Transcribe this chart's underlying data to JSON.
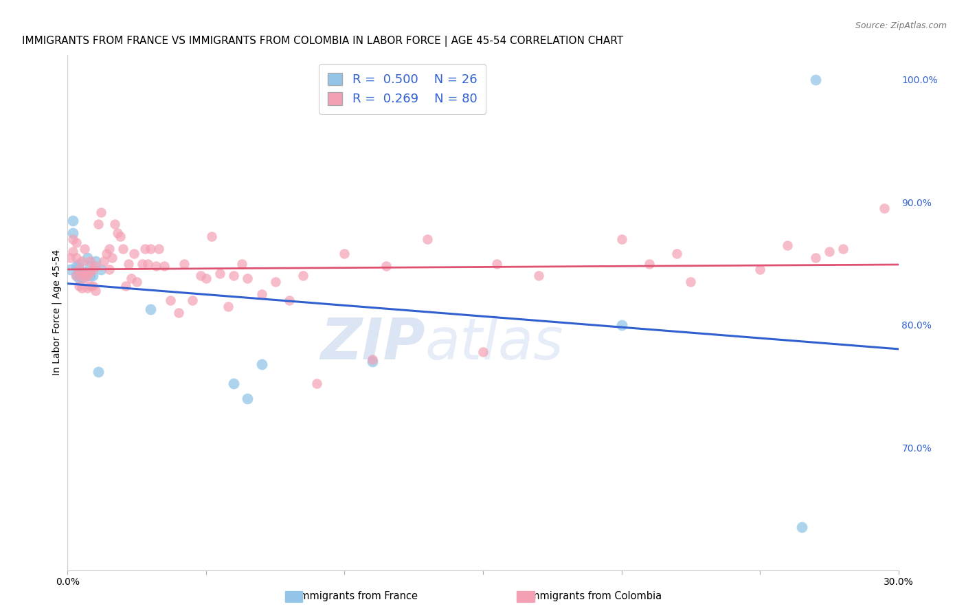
{
  "title": "IMMIGRANTS FROM FRANCE VS IMMIGRANTS FROM COLOMBIA IN LABOR FORCE | AGE 45-54 CORRELATION CHART",
  "source": "Source: ZipAtlas.com",
  "ylabel": "In Labor Force | Age 45-54",
  "xlim": [
    0.0,
    0.3
  ],
  "ylim": [
    0.6,
    1.02
  ],
  "xticks": [
    0.0,
    0.05,
    0.1,
    0.15,
    0.2,
    0.25,
    0.3
  ],
  "xticklabels": [
    "0.0%",
    "",
    "",
    "",
    "",
    "",
    "30.0%"
  ],
  "yticks": [
    0.7,
    0.8,
    0.9,
    1.0
  ],
  "yticklabels": [
    "70.0%",
    "80.0%",
    "90.0%",
    "100.0%"
  ],
  "legend_R_france": "0.500",
  "legend_N_france": "26",
  "legend_R_colombia": "0.269",
  "legend_N_colombia": "80",
  "france_color": "#92C5E8",
  "colombia_color": "#F4A0B4",
  "france_line_color": "#3060D0",
  "colombia_line_color": "#E05070",
  "watermark_zip": "ZIP",
  "watermark_atlas": "atlas",
  "bg_color": "#FFFFFF",
  "grid_color": "#CCCCCC",
  "title_fontsize": 11,
  "axis_label_fontsize": 10,
  "tick_fontsize": 10,
  "source_fontsize": 9,
  "france_x": [
    0.001,
    0.002,
    0.002,
    0.003,
    0.003,
    0.004,
    0.004,
    0.004,
    0.005,
    0.005,
    0.006,
    0.007,
    0.008,
    0.008,
    0.009,
    0.01,
    0.011,
    0.012,
    0.03,
    0.06,
    0.065,
    0.07,
    0.11,
    0.2,
    0.265,
    0.27
  ],
  "france_y": [
    0.845,
    0.875,
    0.885,
    0.84,
    0.848,
    0.838,
    0.842,
    0.85,
    0.838,
    0.843,
    0.843,
    0.855,
    0.84,
    0.848,
    0.84,
    0.852,
    0.762,
    0.845,
    0.813,
    0.752,
    0.74,
    0.768,
    0.77,
    0.8,
    0.635,
    1.0
  ],
  "colombia_x": [
    0.001,
    0.002,
    0.002,
    0.003,
    0.003,
    0.003,
    0.004,
    0.004,
    0.005,
    0.005,
    0.005,
    0.006,
    0.006,
    0.006,
    0.007,
    0.007,
    0.008,
    0.008,
    0.008,
    0.009,
    0.009,
    0.01,
    0.01,
    0.011,
    0.012,
    0.013,
    0.014,
    0.015,
    0.015,
    0.016,
    0.017,
    0.018,
    0.019,
    0.02,
    0.021,
    0.022,
    0.023,
    0.024,
    0.025,
    0.027,
    0.028,
    0.029,
    0.03,
    0.032,
    0.033,
    0.035,
    0.037,
    0.04,
    0.042,
    0.045,
    0.048,
    0.05,
    0.052,
    0.055,
    0.058,
    0.06,
    0.063,
    0.065,
    0.07,
    0.075,
    0.08,
    0.085,
    0.09,
    0.1,
    0.11,
    0.115,
    0.13,
    0.15,
    0.155,
    0.17,
    0.2,
    0.21,
    0.22,
    0.225,
    0.25,
    0.26,
    0.27,
    0.275,
    0.28,
    0.295
  ],
  "colombia_y": [
    0.855,
    0.86,
    0.87,
    0.84,
    0.855,
    0.867,
    0.832,
    0.845,
    0.83,
    0.84,
    0.852,
    0.838,
    0.843,
    0.862,
    0.83,
    0.84,
    0.832,
    0.843,
    0.852,
    0.832,
    0.845,
    0.828,
    0.848,
    0.882,
    0.892,
    0.852,
    0.858,
    0.845,
    0.862,
    0.855,
    0.882,
    0.875,
    0.872,
    0.862,
    0.832,
    0.85,
    0.838,
    0.858,
    0.835,
    0.85,
    0.862,
    0.85,
    0.862,
    0.848,
    0.862,
    0.848,
    0.82,
    0.81,
    0.85,
    0.82,
    0.84,
    0.838,
    0.872,
    0.842,
    0.815,
    0.84,
    0.85,
    0.838,
    0.825,
    0.835,
    0.82,
    0.84,
    0.752,
    0.858,
    0.772,
    0.848,
    0.87,
    0.778,
    0.85,
    0.84,
    0.87,
    0.85,
    0.858,
    0.835,
    0.845,
    0.865,
    0.855,
    0.86,
    0.862,
    0.895
  ]
}
